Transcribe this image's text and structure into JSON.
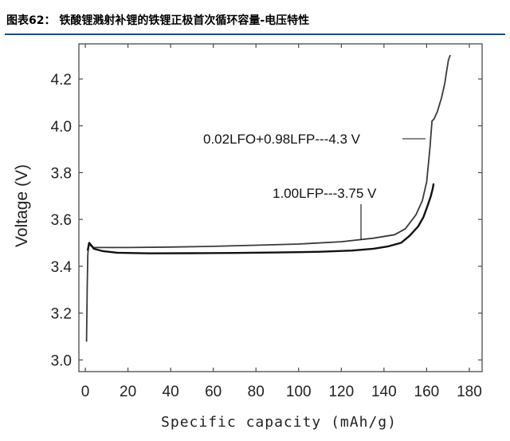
{
  "header": {
    "figure_title": "图表62： 铁酸锂溅射补锂的铁锂正极首次循环容量-电压特性"
  },
  "chart_data": {
    "type": "line",
    "title": "图表62： 铁酸锂溅射补锂的铁锂正极首次循环容量-电压特性",
    "xlabel": "Specific capacity (mAh/g)",
    "ylabel": "Voltage (V)",
    "xlim": [
      -3,
      186
    ],
    "ylim": [
      2.95,
      4.35
    ],
    "x_ticks": [
      0,
      20,
      40,
      60,
      80,
      100,
      120,
      140,
      160,
      180
    ],
    "y_ticks": [
      3.0,
      3.2,
      3.4,
      3.6,
      3.8,
      4.0,
      4.2
    ],
    "grid": false,
    "series": [
      {
        "name": "0.02LFO+0.98LFP---4.3 V",
        "color": "#3a3a3a",
        "x": [
          0.6,
          0.9,
          1.2,
          1.6,
          2.2,
          4,
          10,
          20,
          40,
          60,
          80,
          100,
          120,
          135,
          145,
          150,
          155,
          158,
          160,
          161.5,
          162.5,
          163.5,
          165,
          167,
          168.5,
          169.5,
          170.2,
          171
        ],
        "y": [
          3.08,
          3.3,
          3.45,
          3.49,
          3.49,
          3.48,
          3.48,
          3.48,
          3.482,
          3.485,
          3.49,
          3.495,
          3.505,
          3.52,
          3.535,
          3.56,
          3.62,
          3.68,
          3.76,
          3.9,
          4.02,
          4.03,
          4.06,
          4.12,
          4.18,
          4.24,
          4.28,
          4.3
        ]
      },
      {
        "name": "1.00LFP---3.75 V",
        "color": "#111111",
        "x": [
          1.2,
          1.8,
          2.8,
          4,
          8,
          15,
          30,
          50,
          70,
          90,
          110,
          125,
          135,
          142,
          148,
          152,
          156,
          158.5,
          160.5,
          162,
          162.8,
          163.2
        ],
        "y": [
          3.47,
          3.5,
          3.49,
          3.475,
          3.465,
          3.458,
          3.455,
          3.456,
          3.457,
          3.459,
          3.462,
          3.467,
          3.475,
          3.485,
          3.5,
          3.53,
          3.57,
          3.61,
          3.66,
          3.7,
          3.73,
          3.75
        ]
      }
    ],
    "annotations": [
      {
        "text": "0.02LFO+0.98LFP---4.3 V",
        "series": 0
      },
      {
        "text": "1.00LFP---3.75 V",
        "series": 1
      }
    ]
  }
}
